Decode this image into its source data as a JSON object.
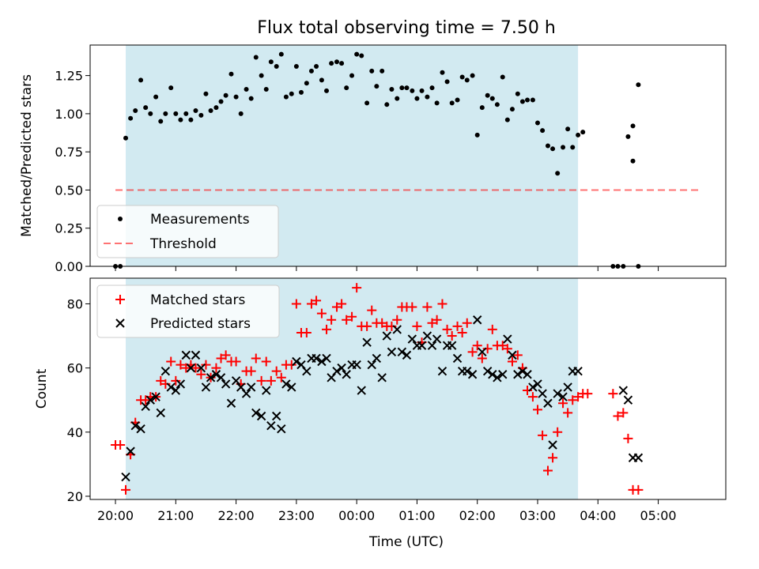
{
  "chart_data": [
    {
      "type": "scatter",
      "title": "Flux total observing time = 7.50 h",
      "ylabel": "Matched/Predicted stars",
      "xlabel": "",
      "ylim": [
        0,
        1.45
      ],
      "yticks": [
        "0.00",
        "0.25",
        "0.50",
        "0.75",
        "1.00",
        "1.25"
      ],
      "ytick_values": [
        0,
        0.25,
        0.5,
        0.75,
        1.0,
        1.25
      ],
      "shaded_span": {
        "x0": 20.17,
        "x1": 27.67,
        "color": "#add8e6"
      },
      "threshold": {
        "y": 0.5,
        "x0": 20.0,
        "x1": 29.67,
        "color": "#ff0000"
      },
      "legend": {
        "position": "lower-left",
        "entries": [
          "Measurements",
          "Threshold"
        ]
      },
      "series": [
        {
          "name": "Measurements",
          "x": [
            20.0,
            20.08,
            20.17,
            20.25,
            20.33,
            20.42,
            20.5,
            20.58,
            20.67,
            20.75,
            20.83,
            20.92,
            21.0,
            21.08,
            21.17,
            21.25,
            21.33,
            21.42,
            21.5,
            21.58,
            21.67,
            21.75,
            21.83,
            21.92,
            22.0,
            22.08,
            22.17,
            22.25,
            22.33,
            22.42,
            22.5,
            22.58,
            22.67,
            22.75,
            22.83,
            22.92,
            23.0,
            23.08,
            23.17,
            23.25,
            23.33,
            23.42,
            23.5,
            23.58,
            23.67,
            23.75,
            23.83,
            23.92,
            24.0,
            24.08,
            24.17,
            24.25,
            24.33,
            24.42,
            24.5,
            24.58,
            24.67,
            24.75,
            24.83,
            24.92,
            25.0,
            25.08,
            25.17,
            25.25,
            25.33,
            25.42,
            25.5,
            25.58,
            25.67,
            25.75,
            25.83,
            25.92,
            26.0,
            26.08,
            26.17,
            26.25,
            26.33,
            26.42,
            26.5,
            26.58,
            26.67,
            26.75,
            26.83,
            26.92,
            27.0,
            27.08,
            27.17,
            27.25,
            27.33,
            27.42,
            27.5,
            27.58,
            27.67,
            27.75,
            28.25,
            28.33,
            28.42,
            28.5,
            28.58,
            28.67
          ],
          "y": [
            0.0,
            0.0,
            0.84,
            0.97,
            1.02,
            1.22,
            1.04,
            1.0,
            1.11,
            0.95,
            1.0,
            1.17,
            1.0,
            0.96,
            1.0,
            0.96,
            1.02,
            0.99,
            1.13,
            1.02,
            1.04,
            1.08,
            1.12,
            1.26,
            1.11,
            1.0,
            1.16,
            1.1,
            1.37,
            1.25,
            1.16,
            1.34,
            1.31,
            1.39,
            1.11,
            1.13,
            1.31,
            1.14,
            1.2,
            1.28,
            1.31,
            1.22,
            1.15,
            1.33,
            1.34,
            1.33,
            1.17,
            1.25,
            1.39,
            1.38,
            1.07,
            1.28,
            1.18,
            1.28,
            1.06,
            1.16,
            1.1,
            1.17,
            1.17,
            1.15,
            1.1,
            1.15,
            1.11,
            1.17,
            1.07,
            1.27,
            1.21,
            1.07,
            1.09,
            1.24,
            1.22,
            1.25,
            0.86,
            1.04,
            1.12,
            1.1,
            1.06,
            1.24,
            0.96,
            1.03,
            1.13,
            1.08,
            1.09,
            1.09,
            0.94,
            0.89,
            0.79,
            0.77,
            0.61,
            0.78,
            0.9,
            0.78,
            0.86,
            0.88,
            0.0,
            0.0,
            0.0,
            0.85,
            0.92,
            1.19
          ]
        },
        {
          "name": "Measurements",
          "x": [
            28.58,
            28.67
          ],
          "y": [
            0.69,
            0.0
          ]
        }
      ]
    },
    {
      "type": "scatter",
      "title": "",
      "xlabel": "Time (UTC)",
      "ylabel": "Count",
      "xlim": [
        19.58,
        30.12
      ],
      "ylim": [
        19,
        88
      ],
      "xtick_labels": [
        "20:00",
        "21:00",
        "22:00",
        "23:00",
        "00:00",
        "01:00",
        "02:00",
        "03:00",
        "04:00",
        "05:00"
      ],
      "xtick_values": [
        20,
        21,
        22,
        23,
        24,
        25,
        26,
        27,
        28,
        29
      ],
      "yticks": [
        "20",
        "40",
        "60",
        "80"
      ],
      "ytick_values": [
        20,
        40,
        60,
        80
      ],
      "shaded_span": {
        "x0": 20.17,
        "x1": 27.67,
        "color": "#add8e6"
      },
      "legend": {
        "position": "top-left",
        "entries": [
          "Matched stars",
          "Predicted stars"
        ]
      },
      "series": [
        {
          "name": "Matched stars",
          "color": "#ff0000",
          "marker": "+",
          "x": [
            20.0,
            20.08,
            20.17,
            20.25,
            20.33,
            20.42,
            20.5,
            20.58,
            20.67,
            20.75,
            20.83,
            20.92,
            21.0,
            21.08,
            21.17,
            21.25,
            21.33,
            21.42,
            21.5,
            21.58,
            21.67,
            21.75,
            21.83,
            21.92,
            22.0,
            22.08,
            22.17,
            22.25,
            22.33,
            22.42,
            22.5,
            22.58,
            22.67,
            22.75,
            22.83,
            22.92,
            23.0,
            23.08,
            23.17,
            23.25,
            23.33,
            23.42,
            23.5,
            23.58,
            23.67,
            23.75,
            23.83,
            23.92,
            24.0,
            24.08,
            24.17,
            24.25,
            24.33,
            24.42,
            24.5,
            24.58,
            24.67,
            24.75,
            24.83,
            24.92,
            25.0,
            25.08,
            25.17,
            25.25,
            25.33,
            25.42,
            25.5,
            25.58,
            25.67,
            25.75,
            25.83,
            25.92,
            26.0,
            26.08,
            26.17,
            26.25,
            26.33,
            26.42,
            26.5,
            26.58,
            26.67,
            26.75,
            26.83,
            26.92,
            27.0,
            27.08,
            27.17,
            27.25,
            27.33,
            27.42,
            27.5,
            27.58,
            27.67,
            27.75,
            27.83,
            28.25,
            28.33,
            28.42,
            28.5,
            28.58,
            28.67
          ],
          "y": [
            36,
            36,
            22,
            33,
            43,
            50,
            50,
            51,
            51,
            56,
            55,
            62,
            56,
            61,
            60,
            61,
            60,
            58,
            61,
            57,
            60,
            63,
            64,
            62,
            62,
            55,
            59,
            59,
            63,
            56,
            62,
            56,
            59,
            57,
            61,
            61,
            80,
            71,
            71,
            80,
            81,
            77,
            72,
            75,
            79,
            80,
            75,
            76,
            85,
            73,
            73,
            78,
            74,
            74,
            73,
            73,
            75,
            79,
            79,
            79,
            73,
            68,
            79,
            74,
            75,
            80,
            72,
            70,
            73,
            71,
            74,
            65,
            67,
            63,
            66,
            72,
            67,
            67,
            66,
            62,
            64,
            60,
            53,
            51,
            47,
            39,
            28,
            32,
            40,
            49,
            46,
            50,
            51,
            52,
            52,
            52,
            45,
            46,
            38,
            22,
            22
          ]
        },
        {
          "name": "Predicted stars",
          "color": "#000000",
          "marker": "x",
          "x": [
            20.17,
            20.25,
            20.33,
            20.42,
            20.5,
            20.58,
            20.67,
            20.75,
            20.83,
            20.92,
            21.0,
            21.08,
            21.17,
            21.25,
            21.33,
            21.42,
            21.5,
            21.58,
            21.67,
            21.75,
            21.83,
            21.92,
            22.0,
            22.08,
            22.17,
            22.25,
            22.33,
            22.42,
            22.5,
            22.58,
            22.67,
            22.75,
            22.83,
            22.92,
            23.0,
            23.08,
            23.17,
            23.25,
            23.33,
            23.42,
            23.5,
            23.58,
            23.67,
            23.75,
            23.83,
            23.92,
            24.0,
            24.08,
            24.17,
            24.25,
            24.33,
            24.42,
            24.5,
            24.58,
            24.67,
            24.75,
            24.83,
            24.92,
            25.0,
            25.08,
            25.17,
            25.25,
            25.33,
            25.42,
            25.5,
            25.58,
            25.67,
            25.75,
            25.83,
            25.92,
            26.0,
            26.08,
            26.17,
            26.25,
            26.33,
            26.42,
            26.5,
            26.58,
            26.67,
            26.75,
            26.83,
            26.92,
            27.0,
            27.08,
            27.17,
            27.25,
            27.33,
            27.42,
            27.5,
            27.58,
            27.67,
            28.42,
            28.5,
            28.58,
            28.67
          ],
          "y": [
            26,
            34,
            42,
            41,
            48,
            50,
            51,
            46,
            59,
            54,
            53,
            55,
            64,
            60,
            64,
            60,
            54,
            57,
            58,
            57,
            55,
            49,
            56,
            54,
            52,
            54,
            46,
            45,
            53,
            42,
            45,
            41,
            55,
            54,
            62,
            61,
            59,
            63,
            63,
            62,
            63,
            57,
            59,
            60,
            58,
            61,
            61,
            53,
            68,
            61,
            63,
            57,
            70,
            65,
            72,
            65,
            64,
            69,
            67,
            67,
            70,
            67,
            69,
            59,
            67,
            67,
            63,
            59,
            59,
            58,
            75,
            65,
            59,
            58,
            57,
            58,
            69,
            64,
            58,
            59,
            58,
            54,
            55,
            52,
            49,
            36,
            52,
            51,
            54,
            59,
            59,
            53,
            50,
            32,
            32
          ]
        }
      ]
    }
  ]
}
